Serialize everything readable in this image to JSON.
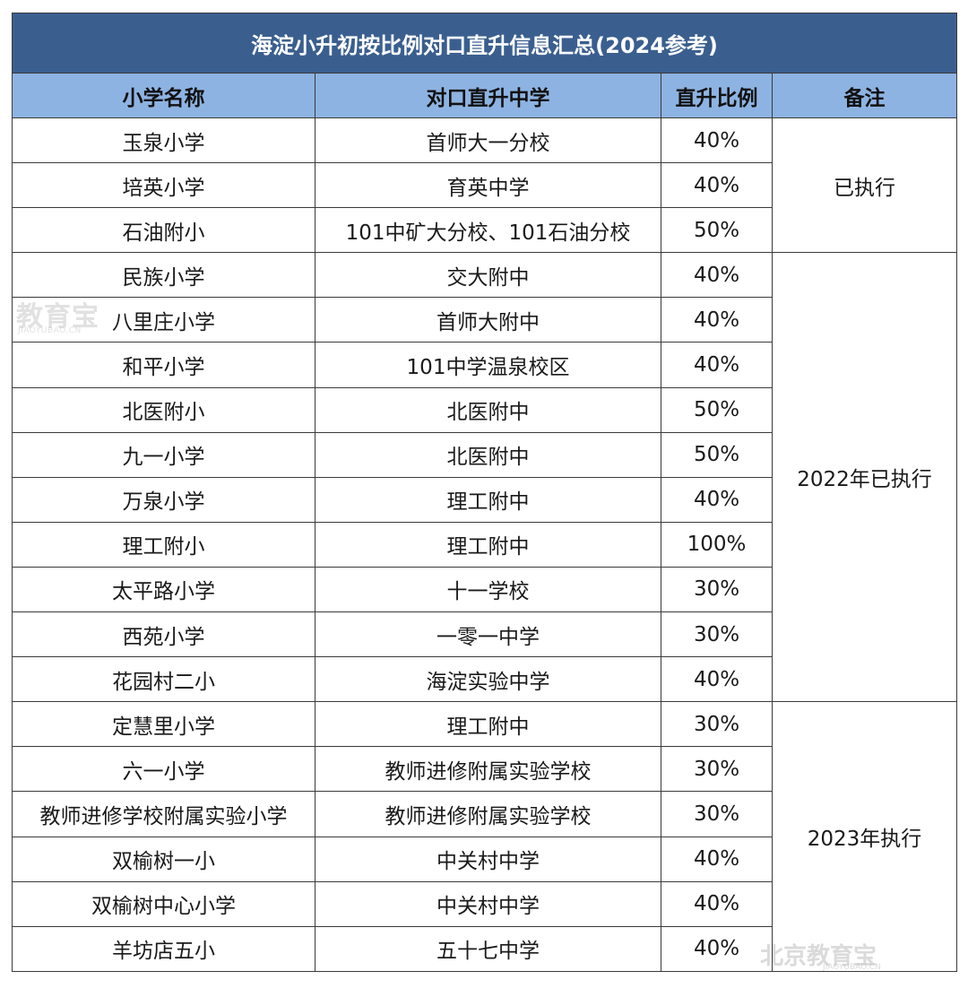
{
  "title": "海淀小升初按比例对口直升信息汇总(2024参考)",
  "headers": [
    "小学名称",
    "对口直升中学",
    "直升比例",
    "备注"
  ],
  "rows": [
    {
      "school": "玉泉小学",
      "middle": "首师大一分校",
      "ratio": "40%"
    },
    {
      "school": "培英小学",
      "middle": "育英中学",
      "ratio": "40%"
    },
    {
      "school": "石油附小",
      "middle": "101中矿大分校、101石油分校",
      "ratio": "50%"
    },
    {
      "school": "民族小学",
      "middle": "交大附中",
      "ratio": "40%"
    },
    {
      "school": "八里庄小学",
      "middle": "首师大附中",
      "ratio": "40%"
    },
    {
      "school": "和平小学",
      "middle": "101中学温泉校区",
      "ratio": "40%"
    },
    {
      "school": "北医附小",
      "middle": "北医附中",
      "ratio": "50%"
    },
    {
      "school": "九一小学",
      "middle": "北医附中",
      "ratio": "50%"
    },
    {
      "school": "万泉小学",
      "middle": "理工附中",
      "ratio": "40%"
    },
    {
      "school": "理工附小",
      "middle": "理工附中",
      "ratio": "100%"
    },
    {
      "school": "太平路小学",
      "middle": "十一学校",
      "ratio": "30%"
    },
    {
      "school": "西苑小学",
      "middle": "一零一中学",
      "ratio": "30%"
    },
    {
      "school": "花园村二小",
      "middle": "海淀实验中学",
      "ratio": "40%"
    },
    {
      "school": "定慧里小学",
      "middle": "理工附中",
      "ratio": "30%"
    },
    {
      "school": "六一小学",
      "middle": "教师进修附属实验学校",
      "ratio": "30%"
    },
    {
      "school": "教师进修学校附属实验小学",
      "middle": "教师进修附属实验学校",
      "ratio": "30%"
    },
    {
      "school": "双榆树一小",
      "middle": "中关村中学",
      "ratio": "40%"
    },
    {
      "school": "双榆树中心小学",
      "middle": "中关村中学",
      "ratio": "40%"
    },
    {
      "school": "羊坊店五小",
      "middle": "五十七中学",
      "ratio": "40%"
    }
  ],
  "notes": [
    "已执行",
    "2022年已执行",
    "2023年执行"
  ],
  "watermarks": {
    "left_main": "教育宝",
    "left_sub": "JIAOYUBAO.CN",
    "right_main": "北京教育宝",
    "right_sub": "JIAOYUBAO.CN"
  },
  "colors": {
    "title_bg": "#3a5f8f",
    "header_bg": "#8db3e2"
  }
}
